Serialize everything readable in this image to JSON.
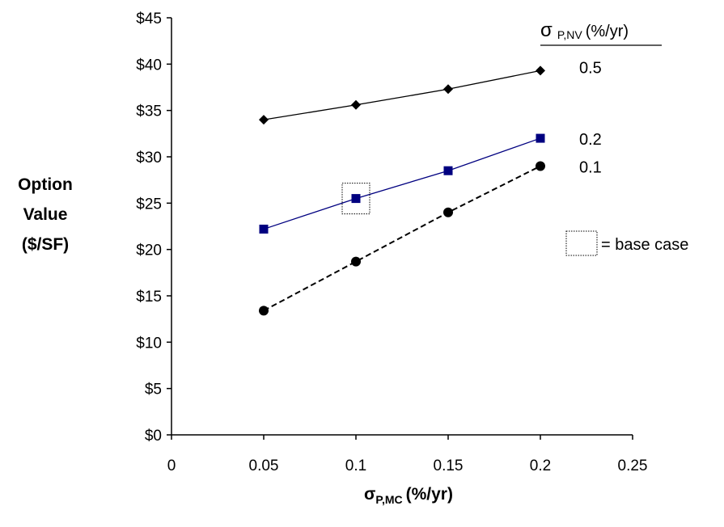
{
  "chart_data": {
    "type": "line",
    "title": "",
    "ylabel_lines": [
      "Option",
      "Value",
      "($/SF)"
    ],
    "xlabel": {
      "symbol": "σ",
      "subscript": "P,MC",
      "suffix": "(%/yr)"
    },
    "xlim": [
      0,
      0.25
    ],
    "x_ticks": [
      0,
      0.05,
      0.1,
      0.15,
      0.2,
      0.25
    ],
    "x_tick_labels": [
      "0",
      "0.05",
      "0.1",
      "0.15",
      "0.2",
      "0.25"
    ],
    "ylim": [
      0,
      45
    ],
    "y_ticks": [
      0,
      5,
      10,
      15,
      20,
      25,
      30,
      35,
      40,
      45
    ],
    "y_tick_labels": [
      "$0",
      "$5",
      "$10",
      "$15",
      "$20",
      "$25",
      "$30",
      "$35",
      "$40",
      "$45"
    ],
    "grid": false,
    "legend": {
      "title_symbol": "σ",
      "title_subscript": "P,NV",
      "title_suffix": "(%/yr)",
      "placement": "top-right"
    },
    "x": [
      0.05,
      0.1,
      0.15,
      0.2
    ],
    "series": [
      {
        "name": "0.5",
        "values": [
          34.0,
          35.6,
          37.3,
          39.3
        ],
        "color": "#000000",
        "marker": "diamond",
        "line": "solid"
      },
      {
        "name": "0.2",
        "values": [
          22.2,
          25.5,
          28.5,
          32.0
        ],
        "color": "#000080",
        "marker": "square",
        "line": "solid"
      },
      {
        "name": "0.1",
        "values": [
          13.4,
          18.7,
          24.0,
          29.0
        ],
        "color": "#000000",
        "marker": "circle",
        "line": "dashed"
      }
    ],
    "annotation": {
      "base_case_point": {
        "x": 0.1,
        "y": 25.5
      },
      "legend_text": "= base case"
    }
  }
}
